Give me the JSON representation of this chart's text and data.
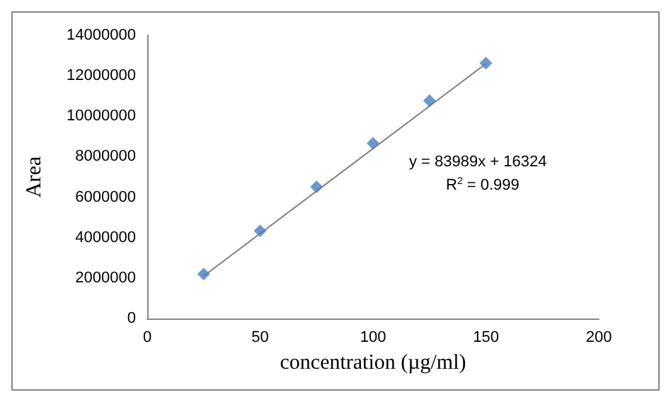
{
  "chart_data": {
    "type": "scatter",
    "xlabel": "concentration (µg/ml)",
    "ylabel": "Area",
    "marker": "diamond",
    "grid": false,
    "x": [
      25,
      50,
      75,
      100,
      125,
      150
    ],
    "series": [
      {
        "color": "#4a7ebb",
        "values": [
          2200000,
          4330000,
          6510000,
          8660000,
          10770000,
          12630000
        ]
      },
      {
        "type": "line",
        "color": "#7f7f7f",
        "marker": "none",
        "x": [
          25,
          150
        ],
        "values": [
          2100000,
          12600000
        ]
      }
    ],
    "annotations": [
      "y = 83989x + 16324",
      "R$^{2}$ = 0.999"
    ],
    "xlim": [
      0,
      200
    ],
    "xticks": [
      0,
      50,
      100,
      150,
      200
    ],
    "ylim": [
      0,
      14000000
    ],
    "yticks": [
      0,
      2000000,
      4000000,
      6000000,
      8000000,
      10000000,
      12000000,
      14000000
    ]
  }
}
